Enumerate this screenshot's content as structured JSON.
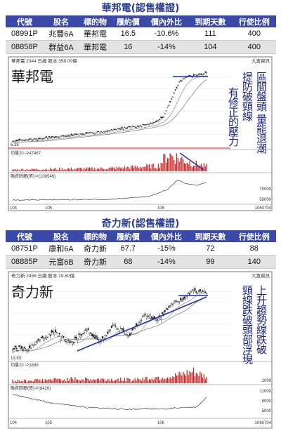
{
  "section1": {
    "title": "華邦電(認售權證)",
    "table": {
      "headers": [
        "代號",
        "股名",
        "標的物",
        "履約價",
        "價內外比",
        "到期天數",
        "行使比例"
      ],
      "rows": [
        [
          "08991P",
          "兆豐6A",
          "華邦電",
          "16.5",
          "-10.6%",
          "111",
          "400"
        ],
        [
          "08858P",
          "群益6A",
          "華邦電",
          "16",
          "-14%",
          "104",
          "400"
        ]
      ]
    },
    "chart_header": "華邦電  2344 日線  股本:358.00億",
    "brand": "大富資訊",
    "chart_title": "華邦電",
    "low_label": "6.38",
    "annotation_col1": "區間盤頭 量能退潮",
    "annotation_col2": "提防破頸線",
    "annotation_col3": "有修正的壓力",
    "volume_label": "均量20 ⇒47467",
    "margin_label": "融資餘額(張)⇒(100546)",
    "margin_tick": "70000",
    "margin_tick2": "50000",
    "date_labels": [
      "104",
      "105",
      "106",
      "1060704"
    ]
  },
  "section2": {
    "title": "奇力新(認售權證)",
    "table": {
      "headers": [
        "代號",
        "股名",
        "標的物",
        "履約價",
        "價內外比",
        "到期天數",
        "行使比例"
      ],
      "rows": [
        [
          "08751P",
          "康和6A",
          "奇力新",
          "67.7",
          "-15%",
          "72",
          "88"
        ],
        [
          "08885P",
          "元富6B",
          "奇力新",
          "68",
          "-14%",
          "99",
          "140"
        ]
      ]
    },
    "chart_header": "奇力新  2456 日線  股本:19.80億",
    "brand": "大富資訊",
    "chart_title": "奇力新",
    "low_label": "19.83",
    "annotation_col1": "上升趨勢線跌破",
    "annotation_col2": "頸線跌破頭部浮現",
    "volume_label": "均量20 ⇒1699",
    "vol_tick": "2000",
    "margin_label": "融資餘額(張)⇒(8426)",
    "margin_ticks": [
      "11000",
      "8000",
      "5000"
    ],
    "date_labels": [
      "104",
      "105",
      "106",
      "1060704"
    ]
  },
  "chart_data": [
    {
      "type": "line",
      "title": "華邦電",
      "ylim_low": 6.38,
      "x": [
        "104",
        "105",
        "106"
      ],
      "series": []
    },
    {
      "type": "line",
      "title": "奇力新",
      "ylim_low": 19.83,
      "x": [
        "104",
        "105",
        "106"
      ],
      "series": []
    }
  ],
  "colors": {
    "header_bg": "#3b4aa8",
    "title": "#2a3f8f",
    "annotation": "#1a237e",
    "trend": "#1f2fb0",
    "volume": "#c62828",
    "price": "#222222"
  }
}
